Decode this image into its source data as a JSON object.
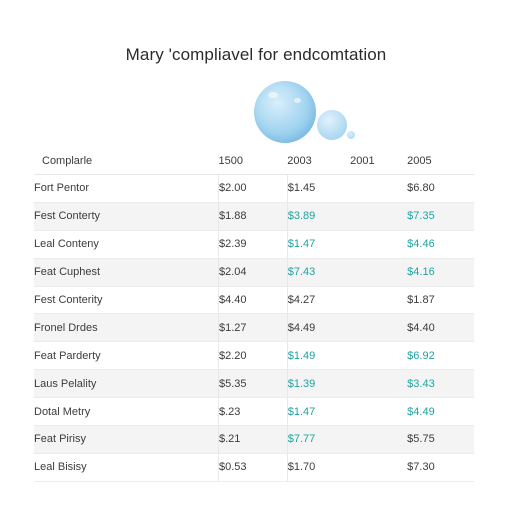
{
  "title": "Mary 'compliavel for endcomtation",
  "colors": {
    "accent_teal": "#1fa3a0",
    "bubble_blue": "#a9d8f2",
    "text": "#3c3c3c",
    "row_shade": "#f4f4f4"
  },
  "table": {
    "headers": [
      "Complarle",
      "1500",
      "2003",
      "2001",
      "2005"
    ],
    "rows": [
      {
        "label": "Fort Pentor",
        "a": "$2.00",
        "b": "$1.45",
        "c": "",
        "d": "$6.80",
        "b_teal": false,
        "d_teal": false
      },
      {
        "label": "Fest Conterty",
        "a": "$1.88",
        "b": "$3.89",
        "c": "",
        "d": "$7.35",
        "b_teal": true,
        "d_teal": true
      },
      {
        "label": "Leal Conteny",
        "a": "$2.39",
        "b": "$1.47",
        "c": "",
        "d": "$4.46",
        "b_teal": true,
        "d_teal": true
      },
      {
        "label": "Feat Cuphest",
        "a": "$2.04",
        "b": "$7.43",
        "c": "",
        "d": "$4.16",
        "b_teal": true,
        "d_teal": true
      },
      {
        "label": "Fest Conterity",
        "a": "$4.40",
        "b": "$4.27",
        "c": "",
        "d": "$1.87",
        "b_teal": false,
        "d_teal": false
      },
      {
        "label": "Fronel Drdes",
        "a": "$1.27",
        "b": "$4.49",
        "c": "",
        "d": "$4.40",
        "b_teal": false,
        "d_teal": false
      },
      {
        "label": "Feat Parderty",
        "a": "$2.20",
        "b": "$1.49",
        "c": "",
        "d": "$6.92",
        "b_teal": true,
        "d_teal": true
      },
      {
        "label": "Laus Pelality",
        "a": "$5.35",
        "b": "$1.39",
        "c": "",
        "d": "$3.43",
        "b_teal": true,
        "d_teal": true
      },
      {
        "label": "Dotal Metry",
        "a": "$.23",
        "b": "$1.47",
        "c": "",
        "d": "$4.49",
        "b_teal": true,
        "d_teal": true
      },
      {
        "label": "Feat Pirisy",
        "a": "$.21",
        "b": "$7.77",
        "c": "",
        "d": "$5.75",
        "b_teal": true,
        "d_teal": false
      },
      {
        "label": "Leal Bisisy",
        "a": "$0.53",
        "b": "$1.70",
        "c": "",
        "d": "$7.30",
        "b_teal": false,
        "d_teal": false
      }
    ]
  }
}
